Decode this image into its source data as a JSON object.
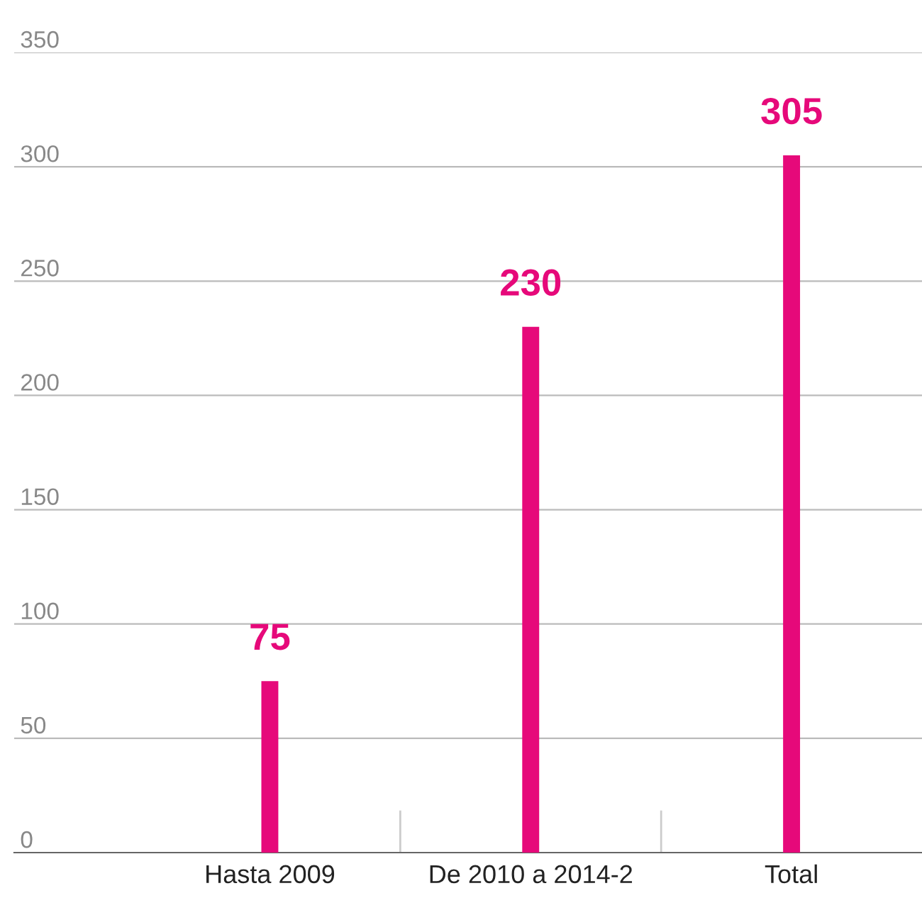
{
  "chart_data": {
    "type": "bar",
    "categories": [
      "Hasta 2009",
      "De 2010 a 2014-2",
      "Total"
    ],
    "values": [
      75,
      230,
      305
    ],
    "color": "#e6097a",
    "ylim": [
      0,
      350
    ],
    "yticks": [
      0,
      50,
      100,
      150,
      200,
      250,
      300,
      350
    ],
    "grid": "y",
    "data_labels": true
  }
}
